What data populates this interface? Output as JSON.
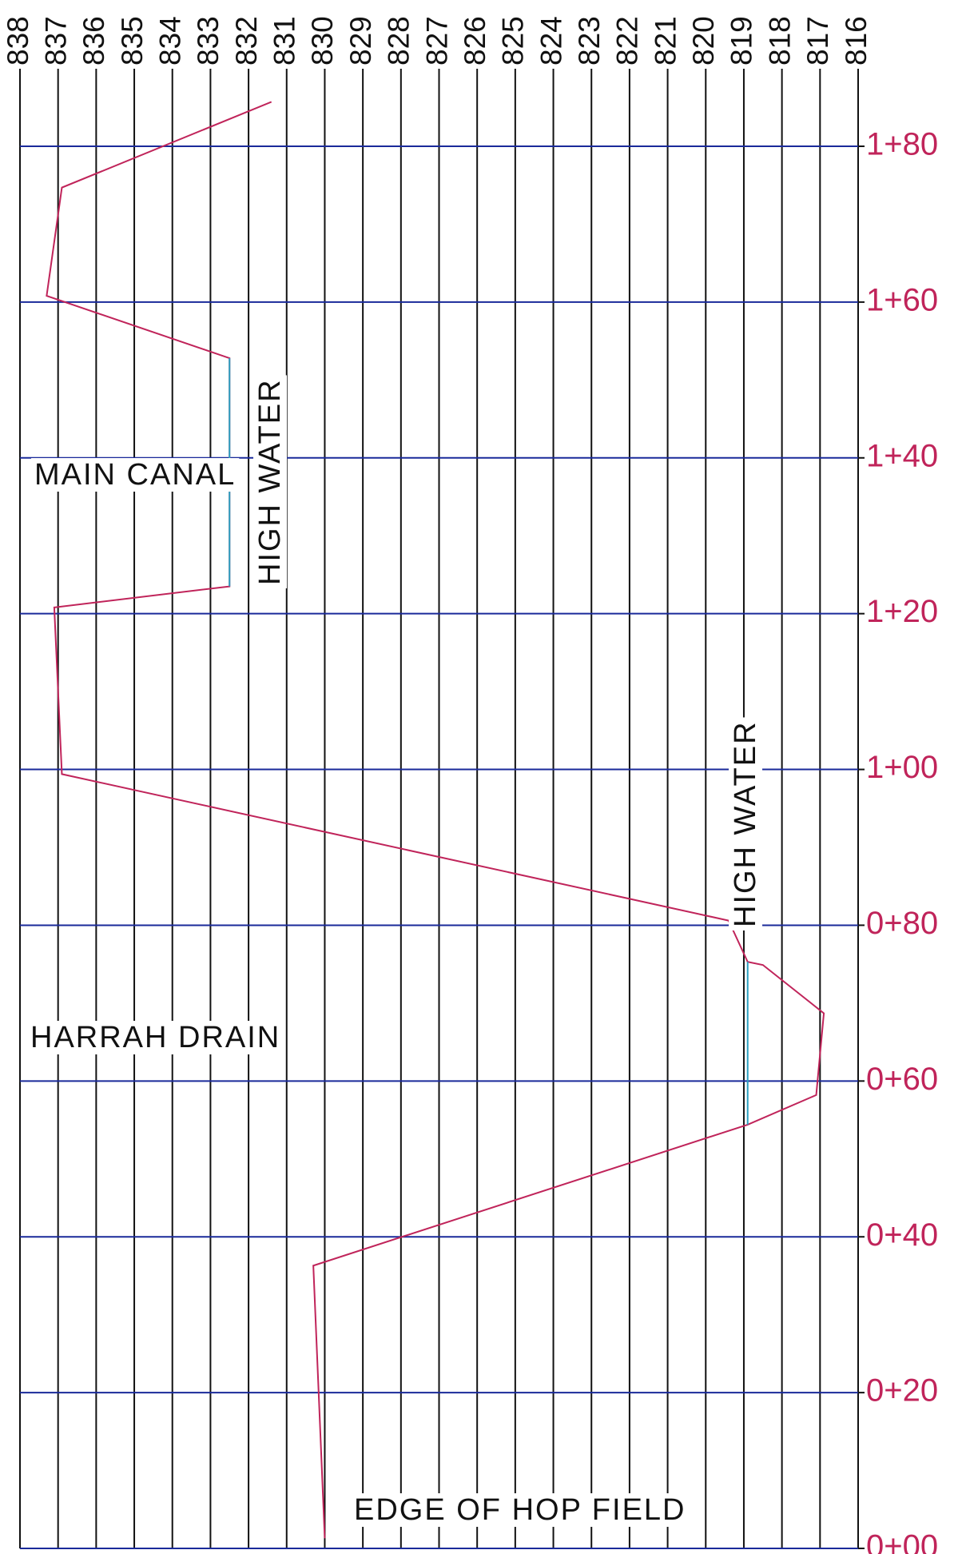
{
  "chart_data": {
    "type": "line",
    "xlim": [
      838,
      816
    ],
    "xticks": [
      838,
      837,
      836,
      835,
      834,
      833,
      832,
      831,
      830,
      829,
      828,
      827,
      826,
      825,
      824,
      823,
      822,
      821,
      820,
      819,
      818,
      817,
      816
    ],
    "ylim": [
      0,
      180
    ],
    "yticks": [
      {
        "value": 0,
        "label": "0+00"
      },
      {
        "value": 20,
        "label": "0+20"
      },
      {
        "value": 40,
        "label": "0+40"
      },
      {
        "value": 60,
        "label": "0+60"
      },
      {
        "value": 80,
        "label": "0+80"
      },
      {
        "value": 100,
        "label": "1+00"
      },
      {
        "value": 120,
        "label": "1+20"
      },
      {
        "value": 140,
        "label": "1+40"
      },
      {
        "value": 160,
        "label": "1+60"
      },
      {
        "value": 180,
        "label": "1+80"
      }
    ],
    "grid": true,
    "series": [
      {
        "color": "#c0245a",
        "x": [
          831.4,
          836.9,
          837.3,
          832.5,
          832.5,
          837.1,
          836.9,
          819.4,
          818.9,
          818.5,
          816.9,
          817.1,
          818.9,
          830.3,
          830.0
        ],
        "values": [
          185.7,
          174.7,
          160.8,
          152.8,
          123.5,
          120.8,
          99.4,
          80.6,
          75.3,
          74.9,
          68.7,
          58.2,
          54.4,
          36.3,
          1.3
        ]
      },
      {
        "color": "#2a9fc0",
        "x": [
          832.5,
          832.5
        ],
        "values": [
          152.8,
          123.5
        ]
      },
      {
        "color": "#2a9fc0",
        "x": [
          818.9,
          818.9
        ],
        "values": [
          75.3,
          54.4
        ]
      }
    ],
    "annotations": [
      "MAIN CANAL",
      "HIGH WATER",
      "HIGH WATER",
      "HARRAH DRAIN",
      "EDGE OF HOP FIELD"
    ]
  }
}
